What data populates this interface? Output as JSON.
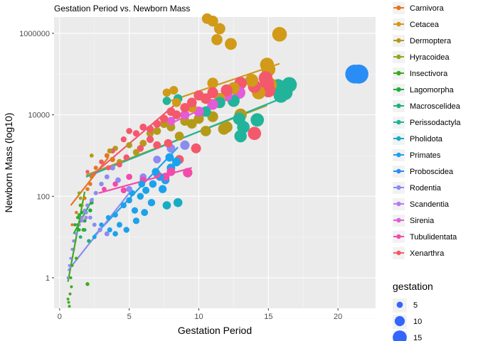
{
  "chart_data": {
    "type": "scatter",
    "title": "Gestation Period vs. Newborn Mass",
    "xlabel": "Gestation Period",
    "ylabel": "Newborn Mass (log10)",
    "xlim": [
      -0.4,
      22.7
    ],
    "ylim_log10": [
      -0.75,
      6.4
    ],
    "y_scale": "log10",
    "x_ticks": [
      0,
      5,
      10,
      15,
      20
    ],
    "x_tick_labels": [
      "0",
      "5",
      "10",
      "15",
      "20"
    ],
    "y_ticks": [
      1,
      100,
      10000,
      1000000
    ],
    "y_tick_labels": [
      "1",
      "100",
      "10000",
      "1000000"
    ],
    "grid": true,
    "legend_position": "right",
    "legend_title": "gestation",
    "size_legend": {
      "labels": [
        "5",
        "10",
        "15"
      ],
      "values": [
        5,
        10,
        15
      ]
    },
    "series": [
      {
        "name": "Carnivora",
        "color": "#E6761C",
        "fit": [
          [
            0.8,
            60
          ],
          [
            3.5,
            900
          ]
        ],
        "points": [
          [
            0.9,
            20
          ],
          [
            1.2,
            40
          ],
          [
            1.5,
            60
          ],
          [
            1.8,
            90
          ],
          [
            2.0,
            150
          ],
          [
            2.3,
            300
          ],
          [
            2.6,
            500
          ],
          [
            2.2,
            200
          ],
          [
            3.0,
            700
          ],
          [
            3.4,
            1000
          ],
          [
            3.8,
            800
          ]
        ]
      },
      {
        "name": "Cetacea",
        "color": "#D19A18",
        "fit": [
          [
            7.6,
            20000
          ],
          [
            15.8,
            180000
          ]
        ],
        "points": [
          [
            10.6,
            2300000
          ],
          [
            11.0,
            2000000
          ],
          [
            11.5,
            1300000
          ],
          [
            11.3,
            700000
          ],
          [
            12.3,
            550000
          ],
          [
            15.8,
            950000
          ],
          [
            14.9,
            170000
          ],
          [
            15.0,
            130000
          ],
          [
            13.8,
            70000
          ],
          [
            12.5,
            45000
          ],
          [
            11.0,
            60000
          ],
          [
            10.0,
            30000
          ],
          [
            9.5,
            15000
          ],
          [
            15.1,
            55000
          ],
          [
            14.3,
            35000
          ],
          [
            11.5,
            25000
          ],
          [
            8.4,
            20000
          ],
          [
            7.7,
            35000
          ],
          [
            8.2,
            40000
          ]
        ]
      },
      {
        "name": "Dermoptera",
        "color": "#B59A1A",
        "fit": [
          [
            1.9,
            330
          ],
          [
            14.9,
            17000
          ]
        ],
        "points": [
          [
            2.3,
            1000
          ],
          [
            3.6,
            1300
          ],
          [
            4.3,
            700
          ],
          [
            5.0,
            1800
          ],
          [
            6.0,
            2000
          ],
          [
            7.0,
            4000
          ],
          [
            8.0,
            5000
          ],
          [
            9.0,
            7000
          ],
          [
            10.0,
            8000
          ],
          [
            11.0,
            9000
          ],
          [
            12.0,
            5000
          ],
          [
            9.5,
            6000
          ],
          [
            10.5,
            4000
          ],
          [
            11.8,
            4500
          ],
          [
            13.0,
            10000
          ],
          [
            7.5,
            6000
          ],
          [
            6.5,
            3500
          ],
          [
            8.6,
            3000
          ],
          [
            5.5,
            1200
          ],
          [
            4.0,
            1500
          ],
          [
            3.0,
            700
          ]
        ]
      },
      {
        "name": "Hyracoidea",
        "color": "#8FAA1C",
        "fit": [],
        "points": [
          [
            1.5,
            90
          ],
          [
            1.6,
            60
          ],
          [
            1.4,
            120
          ]
        ]
      },
      {
        "name": "Insectivora",
        "color": "#3EAA1E",
        "fit": [
          [
            0.6,
            0.8
          ],
          [
            1.8,
            130
          ]
        ],
        "points": [
          [
            0.6,
            0.3
          ],
          [
            0.65,
            0.25
          ],
          [
            0.7,
            0.2
          ],
          [
            0.75,
            0.4
          ],
          [
            0.8,
            1.0
          ],
          [
            0.9,
            2
          ],
          [
            1.0,
            5
          ],
          [
            1.1,
            8
          ],
          [
            1.3,
            20
          ],
          [
            1.4,
            35
          ],
          [
            1.5,
            60
          ],
          [
            2.0,
            0.7
          ],
          [
            1.7,
            15
          ],
          [
            1.2,
            3
          ],
          [
            0.85,
            0.6
          ]
        ]
      },
      {
        "name": "Lagomorpha",
        "color": "#1EAE3C",
        "fit": [
          [
            1.0,
            12
          ],
          [
            2.4,
            90
          ]
        ],
        "points": [
          [
            1.1,
            20
          ],
          [
            1.3,
            30
          ],
          [
            1.6,
            40
          ],
          [
            2.0,
            60
          ],
          [
            2.3,
            70
          ],
          [
            1.8,
            25
          ],
          [
            2.2,
            45
          ],
          [
            1.4,
            15
          ]
        ]
      },
      {
        "name": "Macroscelidea",
        "color": "#1FB17A",
        "fit": [],
        "points": [
          [
            1.5,
            10
          ],
          [
            1.8,
            15
          ],
          [
            2.1,
            8
          ]
        ]
      },
      {
        "name": "Perissodactyla",
        "color": "#22B49A",
        "fit": [
          [
            1.9,
            300
          ],
          [
            15.9,
            25000
          ]
        ],
        "points": [
          [
            7.7,
            22000
          ],
          [
            8.5,
            25000
          ],
          [
            12.9,
            8000
          ],
          [
            13.2,
            5000
          ],
          [
            13.0,
            3000
          ],
          [
            15.7,
            50000
          ],
          [
            16.2,
            35000
          ],
          [
            16.5,
            55000
          ],
          [
            15.9,
            30000
          ],
          [
            14.2,
            7500
          ],
          [
            10.5,
            12000
          ],
          [
            11.5,
            20000
          ],
          [
            12.5,
            22000
          ]
        ]
      },
      {
        "name": "Pholidota",
        "color": "#16ACC4",
        "fit": [],
        "points": [
          [
            7.7,
            60
          ],
          [
            8.5,
            70
          ]
        ]
      },
      {
        "name": "Primates",
        "color": "#1BA2EC",
        "fit": [
          [
            2.4,
            10
          ],
          [
            8.5,
            1600
          ]
        ],
        "points": [
          [
            2.5,
            10
          ],
          [
            3.0,
            20
          ],
          [
            3.5,
            30
          ],
          [
            4.0,
            35
          ],
          [
            4.3,
            20
          ],
          [
            4.6,
            60
          ],
          [
            5.0,
            80
          ],
          [
            5.4,
            45
          ],
          [
            5.8,
            100
          ],
          [
            6.2,
            140
          ],
          [
            6.7,
            200
          ],
          [
            7.2,
            300
          ],
          [
            7.6,
            250
          ],
          [
            8.0,
            500
          ],
          [
            8.4,
            700
          ],
          [
            4.8,
            15
          ],
          [
            5.5,
            25
          ],
          [
            6.1,
            40
          ],
          [
            6.6,
            70
          ],
          [
            5.2,
            120
          ],
          [
            6.9,
            400
          ],
          [
            7.9,
            900
          ],
          [
            4.0,
            12
          ],
          [
            3.6,
            15
          ],
          [
            5.9,
            200
          ],
          [
            7.4,
            150
          ]
        ]
      },
      {
        "name": "Proboscidea",
        "color": "#2A8DF5",
        "fit": [],
        "points": [
          [
            21.2,
            100000
          ],
          [
            21.5,
            100000
          ]
        ]
      },
      {
        "name": "Rodentia",
        "color": "#8B8BF2",
        "fit": [
          [
            0.6,
            1.5
          ],
          [
            5.0,
            120
          ]
        ],
        "points": [
          [
            0.6,
            1
          ],
          [
            0.7,
            2
          ],
          [
            0.8,
            3
          ],
          [
            0.9,
            5
          ],
          [
            1.0,
            8
          ],
          [
            1.2,
            12
          ],
          [
            1.4,
            20
          ],
          [
            1.6,
            30
          ],
          [
            1.8,
            45
          ],
          [
            2.0,
            60
          ],
          [
            2.3,
            80
          ],
          [
            2.6,
            120
          ],
          [
            3.0,
            200
          ],
          [
            3.4,
            300
          ],
          [
            3.8,
            500
          ],
          [
            4.2,
            250
          ],
          [
            5.0,
            150
          ],
          [
            6.0,
            300
          ],
          [
            7.0,
            800
          ],
          [
            8.0,
            1500
          ],
          [
            9.0,
            1800
          ],
          [
            2.9,
            15
          ],
          [
            3.4,
            12
          ],
          [
            2.5,
            20
          ],
          [
            2.2,
            30
          ],
          [
            1.9,
            40
          ]
        ]
      },
      {
        "name": "Scandentia",
        "color": "#B57CF0",
        "fit": [],
        "points": [
          [
            1.4,
            20
          ],
          [
            1.6,
            25
          ],
          [
            1.9,
            30
          ]
        ]
      },
      {
        "name": "Sirenia",
        "color": "#E35BD7",
        "fit": [
          [
            7.9,
            6000
          ],
          [
            11.9,
            25000
          ]
        ],
        "points": [
          [
            8.0,
            7000
          ],
          [
            9.0,
            10000
          ],
          [
            10.0,
            12000
          ],
          [
            11.0,
            18000
          ],
          [
            12.0,
            30000
          ],
          [
            12.9,
            35000
          ]
        ]
      },
      {
        "name": "Tubulidentata",
        "color": "#F24BAA",
        "fit": [
          [
            2.8,
            120
          ],
          [
            9.5,
            500
          ]
        ],
        "points": [
          [
            3.2,
            150
          ],
          [
            4.0,
            200
          ],
          [
            4.6,
            140
          ],
          [
            5.0,
            300
          ],
          [
            6.0,
            250
          ],
          [
            7.0,
            350
          ],
          [
            8.0,
            400
          ],
          [
            9.2,
            380
          ],
          [
            7.6,
            300
          ]
        ]
      },
      {
        "name": "Xenarthra",
        "color": "#F4586B",
        "fit": [
          [
            2.2,
            300
          ],
          [
            8.8,
            25000
          ]
        ],
        "points": [
          [
            2.0,
            400
          ],
          [
            3.0,
            700
          ],
          [
            3.8,
            1300
          ],
          [
            4.6,
            2500
          ],
          [
            5.0,
            4000
          ],
          [
            5.5,
            3500
          ],
          [
            6.0,
            5000
          ],
          [
            6.5,
            4500
          ],
          [
            7.0,
            6000
          ],
          [
            7.5,
            8000
          ],
          [
            8.0,
            12000
          ],
          [
            8.4,
            10000
          ],
          [
            9.0,
            15000
          ],
          [
            9.5,
            20000
          ],
          [
            10.0,
            30000
          ],
          [
            10.5,
            25000
          ],
          [
            11.0,
            35000
          ],
          [
            12.0,
            40000
          ],
          [
            13.0,
            60000
          ],
          [
            14.0,
            50000
          ],
          [
            14.8,
            80000
          ],
          [
            14.9,
            60000
          ],
          [
            15.0,
            40000
          ],
          [
            14.0,
            3500
          ],
          [
            9.8,
            1500
          ],
          [
            8.6,
            800
          ],
          [
            7.8,
            2000
          ],
          [
            7.0,
            1800
          ],
          [
            6.5,
            2500
          ],
          [
            5.8,
            1500
          ],
          [
            4.8,
            900
          ],
          [
            4.3,
            600
          ],
          [
            3.5,
            500
          ]
        ]
      }
    ]
  }
}
